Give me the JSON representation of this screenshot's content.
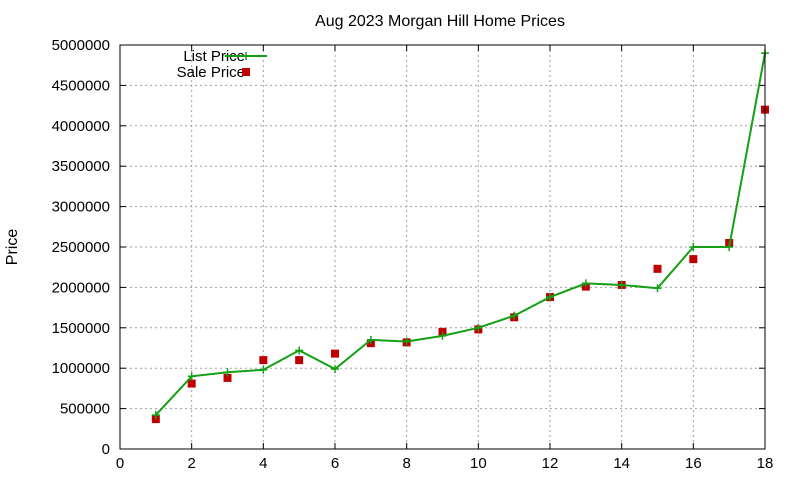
{
  "chart_data": {
    "type": "line",
    "title": "Aug 2023 Morgan Hill Home Prices",
    "xlabel": "",
    "ylabel": "Price",
    "xlim": [
      0,
      18
    ],
    "ylim": [
      0,
      5000000
    ],
    "xticks": [
      0,
      2,
      4,
      6,
      8,
      10,
      12,
      14,
      16,
      18
    ],
    "yticks": [
      0,
      500000,
      1000000,
      1500000,
      2000000,
      2500000,
      3000000,
      3500000,
      4000000,
      4500000,
      5000000
    ],
    "grid": true,
    "legend_position": "top-left",
    "series": [
      {
        "name": "List Price",
        "style": "line-plus",
        "color": "#14a014",
        "x": [
          1,
          2,
          3,
          4,
          5,
          6,
          7,
          8,
          9,
          10,
          11,
          12,
          13,
          14,
          15,
          16,
          17,
          18
        ],
        "values": [
          420000,
          900000,
          950000,
          980000,
          1220000,
          990000,
          1350000,
          1330000,
          1400000,
          1500000,
          1650000,
          1880000,
          2050000,
          2030000,
          1990000,
          2500000,
          2500000,
          4900000
        ]
      },
      {
        "name": "Sale Price",
        "style": "square",
        "color": "#c00000",
        "x": [
          1,
          2,
          3,
          4,
          5,
          6,
          7,
          8,
          9,
          10,
          11,
          12,
          13,
          14,
          15,
          16,
          17,
          18
        ],
        "values": [
          370000,
          810000,
          880000,
          1100000,
          1100000,
          1180000,
          1310000,
          1320000,
          1450000,
          1480000,
          1630000,
          1880000,
          2010000,
          2030000,
          2230000,
          2350000,
          2550000,
          4200000
        ]
      }
    ]
  }
}
